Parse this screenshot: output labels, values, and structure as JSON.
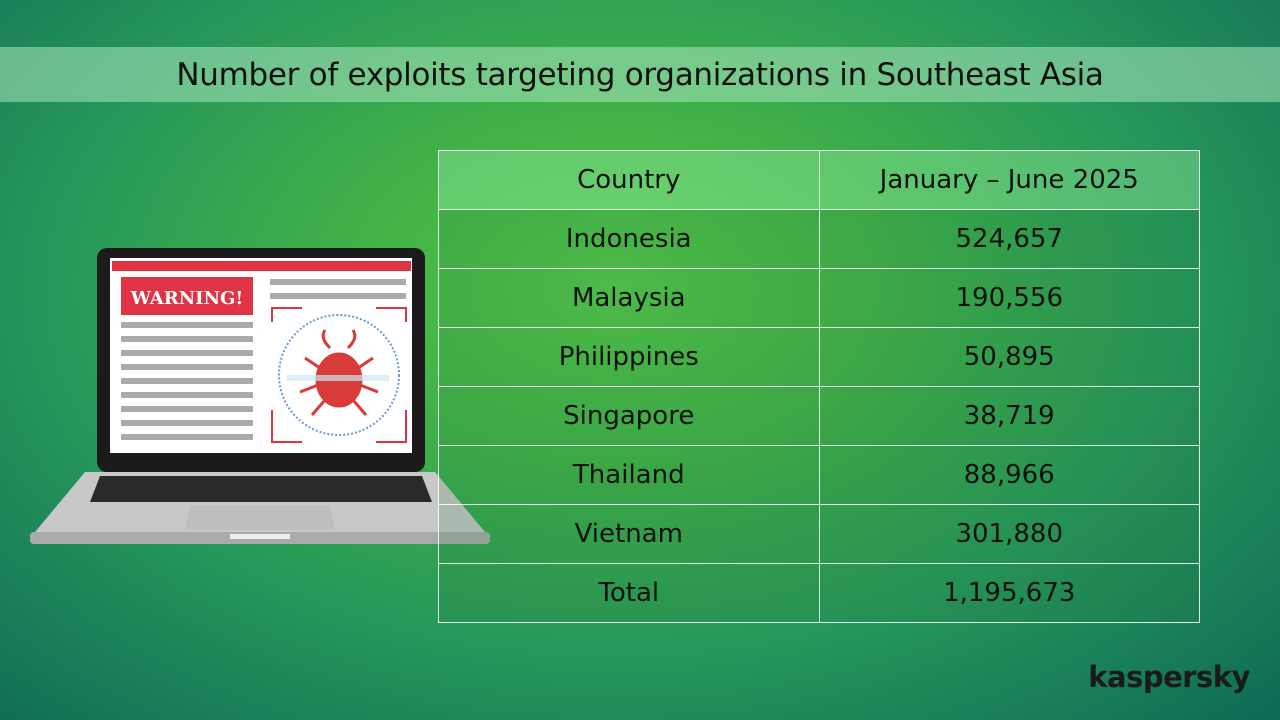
{
  "title": "Number of exploits targeting organizations in Southeast Asia",
  "illustration": {
    "warning_label": "WARNING!",
    "icon": "bug-icon"
  },
  "brand": "kaspersky",
  "colors": {
    "accent_red": "#e03444",
    "background_green": "#3fb048"
  },
  "chart_data": {
    "type": "table",
    "title": "Number of exploits targeting organizations in Southeast Asia",
    "columns": [
      "Country",
      "January – June 2025"
    ],
    "rows": [
      [
        "Indonesia",
        "524,657"
      ],
      [
        "Malaysia",
        "190,556"
      ],
      [
        "Philippines",
        "50,895"
      ],
      [
        "Singapore",
        "38,719"
      ],
      [
        "Thailand",
        "88,966"
      ],
      [
        "Vietnam",
        "301,880"
      ],
      [
        "Total",
        "1,195,673"
      ]
    ]
  }
}
